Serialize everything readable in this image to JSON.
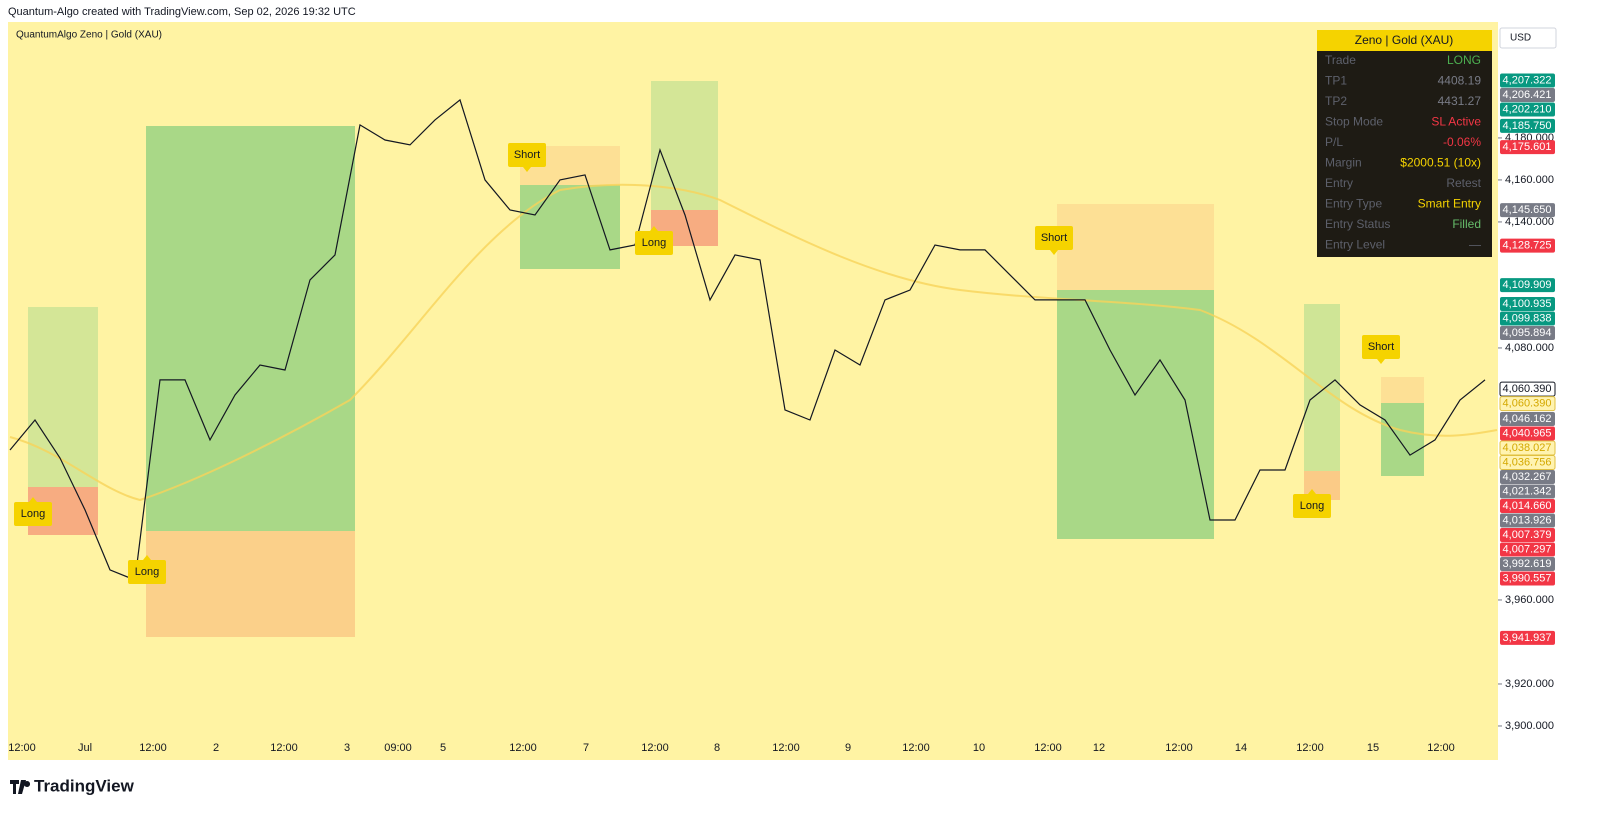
{
  "header": "Quantum-Algo created with TradingView.com, Sep 02, 2026 19:32 UTC",
  "legend": "QuantumAlgo Zeno | Gold (XAU)",
  "currency": "USD",
  "brand": "TradingView",
  "price_axis": {
    "ylim": [
      3883.8,
      4235.2
    ],
    "ticks": [
      {
        "value": 4180,
        "label": "4,180.000"
      },
      {
        "value": 4160,
        "label": "4,160.000"
      },
      {
        "value": 4140,
        "label": "4,140.000"
      },
      {
        "value": 4080,
        "label": "4,080.000"
      },
      {
        "value": 3960,
        "label": "3,960.000"
      },
      {
        "value": 3920,
        "label": "3,920.000"
      },
      {
        "value": 3900,
        "label": "3,900.000"
      }
    ]
  },
  "price_tags": [
    {
      "value": 4207.322,
      "label": "4,207.322",
      "color": "#089981"
    },
    {
      "value": 4206.421,
      "label": "4,206.421",
      "color": "#787b86"
    },
    {
      "value": 4202.21,
      "label": "4,202.210",
      "color": "#089981"
    },
    {
      "value": 4185.75,
      "label": "4,185.750",
      "color": "#089981"
    },
    {
      "value": 4175.601,
      "label": "4,175.601",
      "color": "#f23645"
    },
    {
      "value": 4145.65,
      "label": "4,145.650",
      "color": "#787b86"
    },
    {
      "value": 4128.725,
      "label": "4,128.725",
      "color": "#f23645"
    },
    {
      "value": 4109.909,
      "label": "4,109.909",
      "color": "#089981"
    },
    {
      "value": 4100.935,
      "label": "4,100.935",
      "color": "#089981"
    },
    {
      "value": 4099.838,
      "label": "4,099.838",
      "color": "#089981"
    },
    {
      "value": 4095.894,
      "label": "4,095.894",
      "color": "#787b86"
    },
    {
      "value": 4060.39,
      "label": "4,060.390",
      "color": "#ffffff"
    },
    {
      "value": 4060.39,
      "label": "4,060.390",
      "color": "#fff3b0"
    },
    {
      "value": 4046.162,
      "label": "4,046.162",
      "color": "#787b86"
    },
    {
      "value": 4040.965,
      "label": "4,040.965",
      "color": "#f23645"
    },
    {
      "value": 4038.027,
      "label": "4,038.027",
      "color": "#fff3b0"
    },
    {
      "value": 4036.756,
      "label": "4,036.756",
      "color": "#fff3b0"
    },
    {
      "value": 4032.267,
      "label": "4,032.267",
      "color": "#787b86"
    },
    {
      "value": 4021.342,
      "label": "4,021.342",
      "color": "#787b86"
    },
    {
      "value": 4014.66,
      "label": "4,014.660",
      "color": "#f23645"
    },
    {
      "value": 4013.926,
      "label": "4,013.926",
      "color": "#787b86"
    },
    {
      "value": 4007.379,
      "label": "4,007.379",
      "color": "#f23645"
    },
    {
      "value": 4007.297,
      "label": "4,007.297",
      "color": "#f23645"
    },
    {
      "value": 3992.619,
      "label": "3,992.619",
      "color": "#787b86"
    },
    {
      "value": 3990.557,
      "label": "3,990.557",
      "color": "#f23645"
    },
    {
      "value": 3941.937,
      "label": "3,941.937",
      "color": "#f23645"
    }
  ],
  "time_axis": [
    "12:00",
    "Jul",
    "12:00",
    "2",
    "12:00",
    "3",
    "09:00",
    "5",
    "12:00",
    "7",
    "12:00",
    "8",
    "12:00",
    "9",
    "12:00",
    "10",
    "12:00",
    "12",
    "12:00",
    "14",
    "12:00",
    "15",
    "12:00"
  ],
  "price_path": [
    4031.4,
    4045.7,
    4027.6,
    4002.9,
    3974.3,
    3969.5,
    4064.8,
    4064.8,
    4036.2,
    4057.6,
    4071.9,
    4069.5,
    4112.4,
    4124.3,
    4186.2,
    4179.0,
    4176.7,
    4188.6,
    4198.1,
    4160.0,
    4145.7,
    4143.3,
    4160.0,
    4162.4,
    4126.7,
    4129.0,
    4174.3,
    4143.3,
    4102.9,
    4124.3,
    4121.9,
    4050.5,
    4045.7,
    4079.0,
    4071.9,
    4102.9,
    4107.6,
    4129.0,
    4126.7,
    4126.7,
    4114.8,
    4102.9,
    4102.9,
    4102.9,
    4079.0,
    4057.6,
    4074.3,
    4055.2,
    3998.1,
    3998.1,
    4021.9,
    4021.9,
    4055.2,
    4064.8,
    4052.9,
    4045.7,
    4029.0,
    4036.2,
    4055.2,
    4064.8
  ],
  "signals": [
    "Long",
    "Long",
    "Short",
    "Long",
    "Short",
    "Long",
    "Short"
  ],
  "panel": {
    "title": "Zeno | Gold (XAU)",
    "rows": [
      {
        "label": "Trade",
        "value": "LONG",
        "color": "#4caf50"
      },
      {
        "label": "TP1",
        "value": "4408.19",
        "color": "#787b86"
      },
      {
        "label": "TP2",
        "value": "4431.27",
        "color": "#787b86"
      },
      {
        "label": "Stop Mode",
        "value": "SL Active",
        "color": "#f23645"
      },
      {
        "label": "P/L",
        "value": "-0.06%",
        "color": "#f23645"
      },
      {
        "label": "Margin",
        "value": "$2000.51 (10x)",
        "color": "#f5d300"
      },
      {
        "label": "Entry",
        "value": "Retest",
        "color": "#5d606b"
      },
      {
        "label": "Entry Type",
        "value": "Smart Entry",
        "color": "#f5d300"
      },
      {
        "label": "Entry Status",
        "value": "Filled",
        "color": "#66bb6a"
      },
      {
        "label": "Entry Level",
        "value": "—",
        "color": "#5d606b"
      }
    ]
  }
}
